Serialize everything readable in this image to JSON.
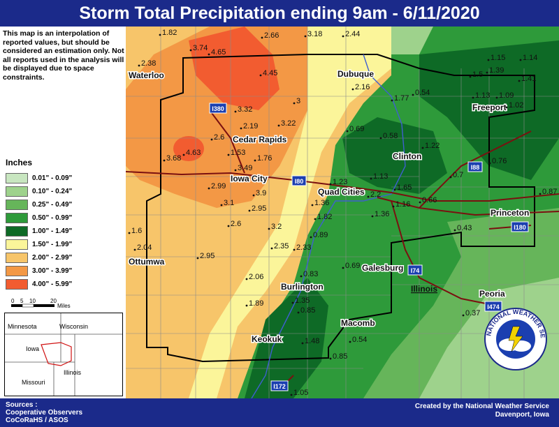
{
  "title": "Storm Total Precipitation ending 9am - 6/11/2020",
  "disclaimer": "This map is an interpolation of reported values, but should be considered an estimation only. Not all reports used in the analysis will be displayed due to space constraints.",
  "legend": {
    "title": "Inches",
    "items": [
      {
        "label": "0.01\" - 0.09\"",
        "color": "#c8e6c0"
      },
      {
        "label": "0.10\" - 0.24\"",
        "color": "#9ed28c"
      },
      {
        "label": "0.25\" - 0.49\"",
        "color": "#66b55a"
      },
      {
        "label": "0.50\" - 0.99\"",
        "color": "#2e9a3a"
      },
      {
        "label": "1.00\" - 1.49\"",
        "color": "#0e6a26"
      },
      {
        "label": "1.50\" - 1.99\"",
        "color": "#fbf59a"
      },
      {
        "label": "2.00\" - 2.99\"",
        "color": "#f7c56a"
      },
      {
        "label": "3.00\" - 3.99\"",
        "color": "#f39845"
      },
      {
        "label": "4.00\" - 5.99\"",
        "color": "#f25c30"
      }
    ]
  },
  "scale": {
    "ticks": [
      "0",
      "5",
      "10",
      "20"
    ],
    "unit": "Miles"
  },
  "inset": {
    "states": [
      "Minnesota",
      "Wisconsin",
      "Iowa",
      "Illinois",
      "Missouri"
    ]
  },
  "cities": [
    "Waterloo",
    "Dubuque",
    "Freeport",
    "Cedar Rapids",
    "Clinton",
    "Iowa City",
    "Quad Cities",
    "Princeton",
    "Ottumwa",
    "Galesburg",
    "Illinois",
    "Burlington",
    "Peoria",
    "Macomb",
    "Keokuk"
  ],
  "highways": [
    "I380",
    "I80",
    "I88",
    "I180",
    "I74",
    "I474",
    "I172"
  ],
  "values": [
    "1.82",
    "2.66",
    "3.18",
    "2.44",
    "3.74",
    "4.65",
    "2.38",
    "4.45",
    "1.15",
    "1.14",
    "1.5",
    "1.39",
    "1.41",
    "2.16",
    "1.77",
    "0.54",
    "1.13",
    "1.09",
    "1.02",
    "3.32",
    "3",
    "2.19",
    "3.22",
    "0.69",
    "0.58",
    "2.6",
    "1.22",
    "3.68",
    "4.63",
    "1.53",
    "1.76",
    "3.49",
    "1.23",
    "1.13",
    "0.7",
    "0.76",
    "2.99",
    "3.9",
    "1.36",
    "2.2",
    "1.65",
    "1.16",
    "0.66",
    "0.87",
    "3.1",
    "2.95",
    "1.82",
    "1.36",
    "1.6",
    "2.6",
    "3.2",
    "0.89",
    "0.43",
    "2.04",
    "2.35",
    "2.33",
    "2.95",
    "0.83",
    "0.69",
    "2.06",
    "1.35",
    "1.89",
    "0.85",
    "0.37",
    "0.54",
    "1.48",
    "0.85",
    "1.05"
  ],
  "sources": [
    "Sources :",
    "Cooperative Observers",
    "CoCoRaHS / ASOS"
  ],
  "credit": [
    "Created by the National Weather Service",
    "Davenport, Iowa"
  ],
  "logo_text": "NATIONAL WEATHER SERVICE"
}
